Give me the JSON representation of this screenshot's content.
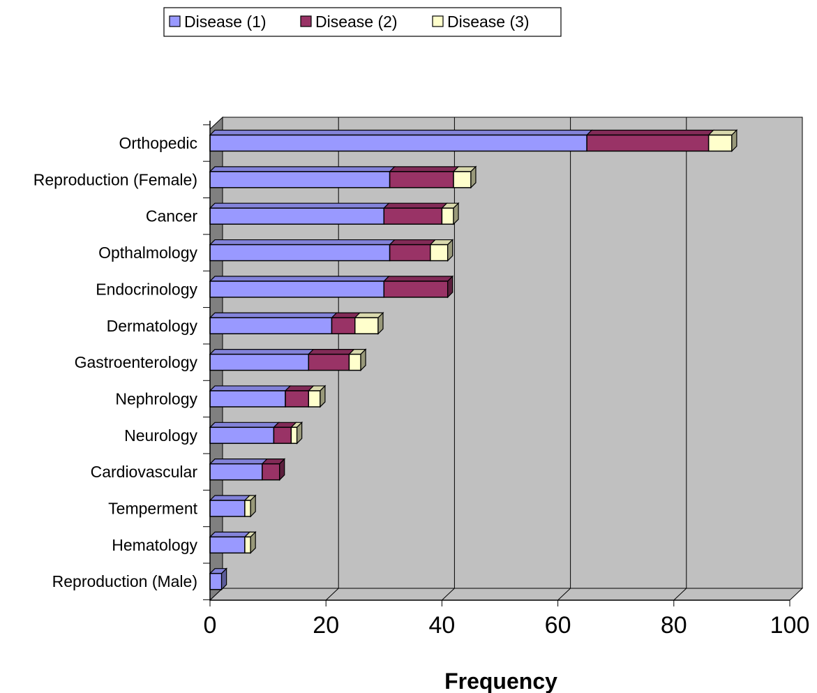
{
  "chart_data": {
    "type": "bar",
    "orientation": "horizontal",
    "stacked": true,
    "three_d": true,
    "categories": [
      "Orthopedic",
      "Reproduction (Female)",
      "Cancer",
      "Opthalmology",
      "Endocrinology",
      "Dermatology",
      "Gastroenterology",
      "Nephrology",
      "Neurology",
      "Cardiovascular",
      "Temperment",
      "Hematology",
      "Reproduction (Male)"
    ],
    "series": [
      {
        "name": "Disease (1)",
        "color": "#9999ff",
        "values": [
          65,
          31,
          30,
          31,
          30,
          21,
          17,
          13,
          11,
          9,
          6,
          6,
          2
        ]
      },
      {
        "name": "Disease (2)",
        "color": "#993366",
        "values": [
          21,
          11,
          10,
          7,
          11,
          4,
          7,
          4,
          3,
          3,
          0,
          0,
          0
        ]
      },
      {
        "name": "Disease (3)",
        "color": "#ffffcc",
        "values": [
          4,
          3,
          2,
          3,
          0,
          4,
          2,
          2,
          1,
          0,
          1,
          1,
          0
        ]
      }
    ],
    "xlabel": "Frequency",
    "ylabel": "",
    "xlim": [
      0,
      100
    ],
    "x_ticks": [
      "0",
      "20",
      "40",
      "60",
      "80",
      "100"
    ],
    "grid": true,
    "legend_position": "top",
    "wall_color": "#c0c0c0",
    "side_wall_color": "#808080"
  }
}
